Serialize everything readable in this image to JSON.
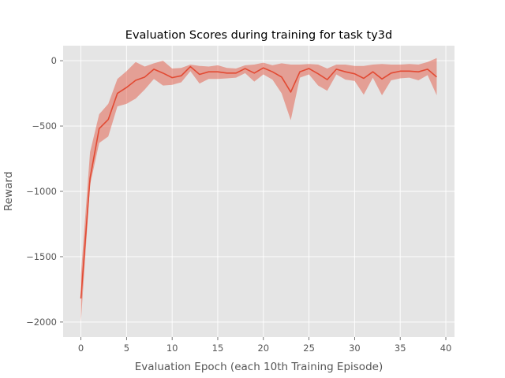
{
  "chart_data": {
    "type": "line",
    "title": "Evaluation Scores during training for task ty3d",
    "xlabel": "Evaluation Epoch (each 10th Training Episode)",
    "ylabel": "Reward",
    "xlim": [
      -1.95,
      40.95
    ],
    "ylim": [
      -2115,
      115
    ],
    "xticks": [
      0,
      5,
      10,
      15,
      20,
      25,
      30,
      35,
      40
    ],
    "yticks": [
      0,
      -500,
      -1000,
      -1500,
      -2000
    ],
    "xtick_labels": [
      "0",
      "5",
      "10",
      "15",
      "20",
      "25",
      "30",
      "35",
      "40"
    ],
    "ytick_labels": [
      "0",
      "−500",
      "−1000",
      "−1500",
      "−2000"
    ],
    "grid": true,
    "style": "ggplot",
    "colors": {
      "line": "#E24A33",
      "band": "#E24A33",
      "background": "#E5E5E5",
      "grid": "#FFFFFF"
    },
    "series": [
      {
        "x": [
          0,
          1,
          2,
          3,
          4,
          5,
          6,
          7,
          8,
          9,
          10,
          11,
          12,
          13,
          14,
          15,
          16,
          17,
          18,
          19,
          20,
          21,
          22,
          23,
          24,
          25,
          26,
          27,
          28,
          29,
          30,
          31,
          32,
          33,
          34,
          35,
          36,
          37,
          38,
          39
        ],
        "y": [
          -1820,
          -900,
          -520,
          -450,
          -250,
          -205,
          -150,
          -125,
          -65,
          -95,
          -130,
          -115,
          -45,
          -105,
          -85,
          -85,
          -95,
          -95,
          -60,
          -95,
          -55,
          -85,
          -125,
          -240,
          -85,
          -60,
          -100,
          -145,
          -65,
          -85,
          -100,
          -135,
          -85,
          -140,
          -95,
          -80,
          -80,
          -85,
          -65,
          -125
        ],
        "lower": [
          -2000,
          -950,
          -630,
          -580,
          -350,
          -330,
          -290,
          -220,
          -140,
          -190,
          -185,
          -165,
          -80,
          -175,
          -140,
          -140,
          -135,
          -130,
          -95,
          -160,
          -105,
          -145,
          -250,
          -455,
          -130,
          -105,
          -190,
          -230,
          -105,
          -145,
          -155,
          -260,
          -130,
          -265,
          -150,
          -135,
          -130,
          -150,
          -110,
          -265
        ],
        "upper": [
          -1640,
          -700,
          -410,
          -330,
          -140,
          -80,
          -10,
          -45,
          -20,
          0,
          -60,
          -55,
          -30,
          -40,
          -45,
          -35,
          -55,
          -60,
          -35,
          -30,
          -15,
          -35,
          -20,
          -30,
          -30,
          -25,
          -30,
          -60,
          -30,
          -30,
          -40,
          -40,
          -30,
          -25,
          -30,
          -30,
          -25,
          -30,
          -10,
          20
        ]
      }
    ]
  }
}
